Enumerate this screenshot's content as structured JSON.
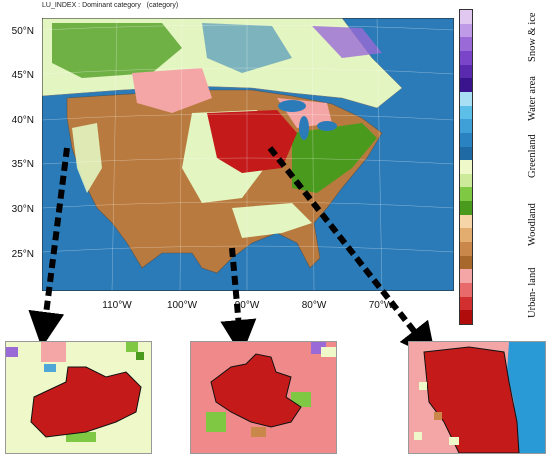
{
  "title": "LU_INDEX : Dominant category   (category)",
  "map": {
    "region": "Contiguous United States and southern Canada",
    "lat_labels": [
      "50°N",
      "45°N",
      "40°N",
      "35°N",
      "30°N",
      "25°N"
    ],
    "lon_labels": [
      "110°W",
      "100°W",
      "90°W",
      "80°W",
      "70°W"
    ],
    "colors": {
      "ocean": "#2a7bb8",
      "snow_ice": "#9a6bd6",
      "water": "#4fa7d8",
      "greenland_light": "#e3f5c0",
      "greenland_dark": "#4a9a1e",
      "woodland": "#b87a3e",
      "urban_land": "#c41a1a",
      "pink": "#f4a6a6"
    }
  },
  "legend": {
    "categories": [
      "Snow & ice",
      "Water area",
      "Greenland",
      "Woodland",
      "Urban- land"
    ],
    "swatches": [
      "#e0c8f0",
      "#bf9ae6",
      "#9a6bd6",
      "#7a45c8",
      "#5a2aae",
      "#3a148c",
      "#a8dff4",
      "#5cbfe8",
      "#3ea0d6",
      "#2a82c0",
      "#1f6aa4",
      "#eef8c8",
      "#cdea9a",
      "#7fc844",
      "#4a9a1e",
      "#f6d6a8",
      "#e2ad6e",
      "#c9884a",
      "#a8682c",
      "#f4a6a6",
      "#e86a6a",
      "#d23030",
      "#b00c0c"
    ]
  },
  "insets": [
    {
      "name": "inset-denver-area"
    },
    {
      "name": "inset-dallas-area"
    },
    {
      "name": "inset-chicago-area"
    }
  ]
}
